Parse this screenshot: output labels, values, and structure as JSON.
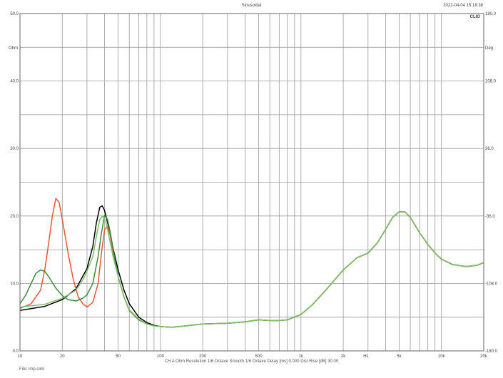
{
  "header": {
    "title": "Sinusoidal",
    "timestamp": "2022-04-04 15.18.38",
    "brand": "CLIO"
  },
  "footer": {
    "settings": "CH A   Ohm   Resolution  1/6 Octave    Smooth  1/6 Octave    Delay [ms] 0.000    Dist Rise [dB] 30.00",
    "file": "File: imp.cimi"
  },
  "colors": {
    "grid": "#9a9a9a",
    "frame": "#666666",
    "series": [
      "#000000",
      "#e8573a",
      "#3d8a3d",
      "#7fbf6a"
    ]
  },
  "chart_data": {
    "type": "line",
    "x_scale": "log",
    "xlim": [
      10,
      20000
    ],
    "ylim": [
      0,
      50
    ],
    "y2lim": [
      -180,
      180
    ],
    "y_unit_label": "Ohm",
    "y2_unit_label": "Deg",
    "x_unit_label": "Hz",
    "x_ticks": [
      {
        "value": 10,
        "label": "10"
      },
      {
        "value": 20,
        "label": "20"
      },
      {
        "value": 50,
        "label": "50"
      },
      {
        "value": 100,
        "label": "100"
      },
      {
        "value": 200,
        "label": "200"
      },
      {
        "value": 500,
        "label": "500"
      },
      {
        "value": 1000,
        "label": "1k"
      },
      {
        "value": 2000,
        "label": "2k"
      },
      {
        "value": 5000,
        "label": "5k"
      },
      {
        "value": 10000,
        "label": "10k"
      },
      {
        "value": 20000,
        "label": "20k"
      }
    ],
    "y_ticks": [
      {
        "value": 0,
        "label": "0.0"
      },
      {
        "value": 10,
        "label": "10.0"
      },
      {
        "value": 20,
        "label": "20.0"
      },
      {
        "value": 30,
        "label": "30.0"
      },
      {
        "value": 40,
        "label": "40.0"
      },
      {
        "value": 50,
        "label": "50.0"
      }
    ],
    "y2_ticks": [
      {
        "value": -180,
        "label": "-180.0"
      },
      {
        "value": -108,
        "label": "-108.0"
      },
      {
        "value": -36,
        "label": "-36.0"
      },
      {
        "value": 36,
        "label": "36.0"
      },
      {
        "value": 108,
        "label": "108.0"
      },
      {
        "value": 180,
        "label": "180.0"
      }
    ],
    "series": [
      {
        "points": [
          [
            10,
            6
          ],
          [
            15,
            6.6
          ],
          [
            20,
            7.6
          ],
          [
            25,
            9.2
          ],
          [
            30,
            12.2
          ],
          [
            33,
            15.5
          ],
          [
            35,
            19
          ],
          [
            37,
            21.3
          ],
          [
            38.5,
            21.5
          ],
          [
            40,
            20.8
          ],
          [
            43,
            18.2
          ],
          [
            46,
            15.2
          ],
          [
            50,
            12
          ],
          [
            55,
            9
          ],
          [
            60,
            7
          ],
          [
            70,
            5
          ],
          [
            80,
            4.2
          ],
          [
            90,
            3.8
          ],
          [
            100,
            3.6
          ],
          [
            120,
            3.5
          ],
          [
            150,
            3.7
          ],
          [
            200,
            4
          ],
          [
            300,
            4.1
          ],
          [
            400,
            4.3
          ],
          [
            500,
            4.6
          ],
          [
            600,
            4.5
          ],
          [
            700,
            4.5
          ],
          [
            800,
            4.6
          ],
          [
            1000,
            5.4
          ],
          [
            1200,
            6.8
          ],
          [
            1500,
            9
          ],
          [
            2000,
            12
          ],
          [
            2500,
            13.8
          ],
          [
            3000,
            14.5
          ],
          [
            3500,
            16
          ],
          [
            4000,
            18
          ],
          [
            4500,
            19.8
          ],
          [
            5000,
            20.6
          ],
          [
            5500,
            20.6
          ],
          [
            6000,
            19.8
          ],
          [
            7000,
            17.5
          ],
          [
            8000,
            15.8
          ],
          [
            9000,
            14.5
          ],
          [
            10000,
            13.6
          ],
          [
            12000,
            12.8
          ],
          [
            15000,
            12.5
          ],
          [
            18000,
            12.7
          ],
          [
            20000,
            13.1
          ]
        ]
      },
      {
        "points": [
          [
            10,
            6.3
          ],
          [
            12,
            7
          ],
          [
            14,
            9
          ],
          [
            15,
            12
          ],
          [
            16,
            16
          ],
          [
            17,
            20
          ],
          [
            18,
            22.6
          ],
          [
            19,
            22
          ],
          [
            20,
            19.5
          ],
          [
            22,
            14.5
          ],
          [
            24,
            10.5
          ],
          [
            26,
            8
          ],
          [
            28,
            7
          ],
          [
            30,
            6.5
          ],
          [
            33,
            7.2
          ],
          [
            36,
            10
          ],
          [
            38,
            14.5
          ],
          [
            40,
            18
          ],
          [
            42,
            18.5
          ],
          [
            44,
            17
          ],
          [
            46,
            14.5
          ],
          [
            50,
            11
          ],
          [
            55,
            8
          ],
          [
            60,
            6
          ],
          [
            70,
            4.6
          ],
          [
            80,
            4
          ],
          [
            90,
            3.7
          ],
          [
            100,
            3.6
          ],
          [
            120,
            3.5
          ],
          [
            150,
            3.7
          ],
          [
            200,
            4
          ],
          [
            300,
            4.1
          ],
          [
            400,
            4.3
          ],
          [
            500,
            4.6
          ],
          [
            600,
            4.5
          ],
          [
            700,
            4.5
          ],
          [
            800,
            4.6
          ],
          [
            1000,
            5.4
          ],
          [
            1200,
            6.8
          ],
          [
            1500,
            9
          ],
          [
            2000,
            12
          ],
          [
            2500,
            13.8
          ],
          [
            3000,
            14.5
          ],
          [
            3500,
            16
          ],
          [
            4000,
            18
          ],
          [
            4500,
            19.8
          ],
          [
            5000,
            20.6
          ],
          [
            5500,
            20.6
          ],
          [
            6000,
            19.8
          ],
          [
            7000,
            17.5
          ],
          [
            8000,
            15.8
          ],
          [
            9000,
            14.5
          ],
          [
            10000,
            13.6
          ],
          [
            12000,
            12.8
          ],
          [
            15000,
            12.5
          ],
          [
            18000,
            12.7
          ],
          [
            20000,
            13.1
          ]
        ]
      },
      {
        "points": [
          [
            10,
            7
          ],
          [
            11,
            8.3
          ],
          [
            12,
            10
          ],
          [
            13,
            11.5
          ],
          [
            14,
            12
          ],
          [
            15,
            11.8
          ],
          [
            16,
            11
          ],
          [
            18,
            9.3
          ],
          [
            20,
            8.2
          ],
          [
            22,
            7.6
          ],
          [
            25,
            7.4
          ],
          [
            28,
            7.8
          ],
          [
            30,
            8.3
          ],
          [
            33,
            10
          ],
          [
            36,
            14
          ],
          [
            38,
            17.5
          ],
          [
            40,
            20.1
          ],
          [
            42,
            19.5
          ],
          [
            44,
            17.5
          ],
          [
            47,
            14
          ],
          [
            50,
            11
          ],
          [
            55,
            8
          ],
          [
            60,
            6
          ],
          [
            70,
            4.6
          ],
          [
            80,
            4
          ],
          [
            90,
            3.7
          ],
          [
            100,
            3.6
          ],
          [
            120,
            3.5
          ],
          [
            150,
            3.7
          ],
          [
            200,
            4
          ],
          [
            300,
            4.1
          ],
          [
            400,
            4.3
          ],
          [
            500,
            4.6
          ],
          [
            600,
            4.5
          ],
          [
            700,
            4.5
          ],
          [
            800,
            4.6
          ],
          [
            1000,
            5.4
          ],
          [
            1200,
            6.8
          ],
          [
            1500,
            9
          ],
          [
            2000,
            12
          ],
          [
            2500,
            13.8
          ],
          [
            3000,
            14.5
          ],
          [
            3500,
            16
          ],
          [
            4000,
            18
          ],
          [
            4500,
            19.8
          ],
          [
            5000,
            20.6
          ],
          [
            5500,
            20.6
          ],
          [
            6000,
            19.8
          ],
          [
            7000,
            17.5
          ],
          [
            8000,
            15.8
          ],
          [
            9000,
            14.5
          ],
          [
            10000,
            13.6
          ],
          [
            12000,
            12.8
          ],
          [
            15000,
            12.5
          ],
          [
            18000,
            12.7
          ],
          [
            20000,
            13.1
          ]
        ]
      },
      {
        "points": [
          [
            10,
            6.5
          ],
          [
            15,
            6.9
          ],
          [
            20,
            7.8
          ],
          [
            25,
            9
          ],
          [
            28,
            10.5
          ],
          [
            30,
            11.8
          ],
          [
            33,
            14
          ],
          [
            35,
            17
          ],
          [
            37,
            19.5
          ],
          [
            39,
            20
          ],
          [
            41,
            19
          ],
          [
            43,
            17
          ],
          [
            46,
            14
          ],
          [
            50,
            11
          ],
          [
            55,
            8
          ],
          [
            60,
            6.1
          ],
          [
            70,
            4.7
          ],
          [
            80,
            4
          ],
          [
            90,
            3.7
          ],
          [
            100,
            3.6
          ],
          [
            120,
            3.5
          ],
          [
            150,
            3.7
          ],
          [
            200,
            4
          ],
          [
            300,
            4.1
          ],
          [
            400,
            4.3
          ],
          [
            500,
            4.6
          ],
          [
            600,
            4.5
          ],
          [
            700,
            4.5
          ],
          [
            800,
            4.6
          ],
          [
            1000,
            5.4
          ],
          [
            1200,
            6.8
          ],
          [
            1500,
            9
          ],
          [
            2000,
            12
          ],
          [
            2500,
            13.8
          ],
          [
            3000,
            14.5
          ],
          [
            3500,
            16
          ],
          [
            4000,
            18
          ],
          [
            4500,
            19.8
          ],
          [
            5000,
            20.6
          ],
          [
            5500,
            20.6
          ],
          [
            6000,
            19.8
          ],
          [
            7000,
            17.5
          ],
          [
            8000,
            15.8
          ],
          [
            9000,
            14.5
          ],
          [
            10000,
            13.6
          ],
          [
            12000,
            12.8
          ],
          [
            15000,
            12.5
          ],
          [
            18000,
            12.7
          ],
          [
            20000,
            13.1
          ]
        ]
      }
    ]
  }
}
